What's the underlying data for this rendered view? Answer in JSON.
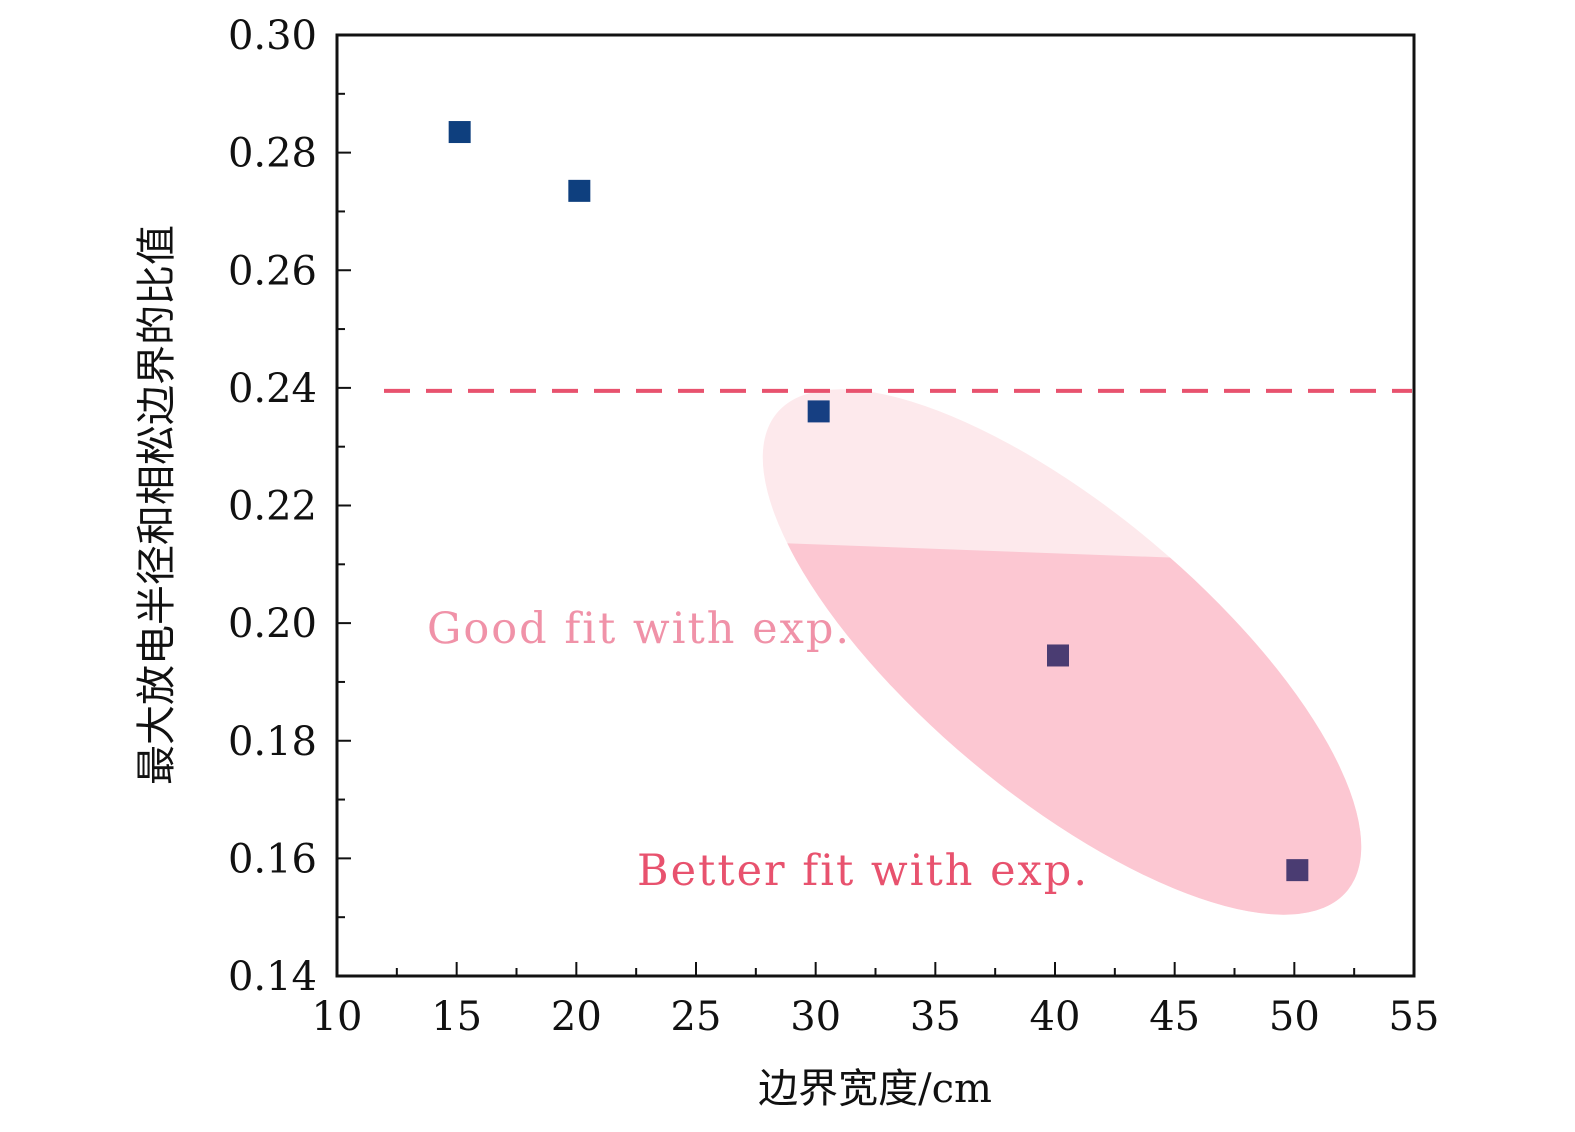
{
  "chart_data": {
    "type": "scatter",
    "xlabel": "边界宽度/cm",
    "ylabel": "最大放电半径和相松边界的比值",
    "xlim": [
      10,
      55
    ],
    "ylim": [
      0.14,
      0.3
    ],
    "xticks": [
      "10",
      "15",
      "20",
      "25",
      "30",
      "35",
      "40",
      "45",
      "50",
      "55"
    ],
    "yticks": [
      "0.14",
      "0.16",
      "0.18",
      "0.20",
      "0.22",
      "0.24",
      "0.26",
      "0.28",
      "0.30"
    ],
    "grid": false,
    "series": [
      {
        "x": [
          15,
          20,
          30,
          40,
          50
        ],
        "y": [
          0.2835,
          0.2735,
          0.236,
          0.1945,
          0.158
        ],
        "colors": [
          "#0e3f7e",
          "#0e3f7e",
          "#163f82",
          "#4a3c72",
          "#4a3c72"
        ],
        "marker": "square"
      }
    ],
    "reference_line": {
      "y": 0.2395,
      "style": "dashed",
      "color": "#e8526e"
    },
    "annotations": [
      {
        "text": "Good fit with exp.",
        "color": "#f092a8"
      },
      {
        "text": "Better fit with exp.",
        "color": "#e8526e"
      }
    ],
    "colors": {
      "axis": "#111111",
      "ellipse_light": "#fde9ec",
      "ellipse_dark": "#fcc7d2"
    }
  }
}
